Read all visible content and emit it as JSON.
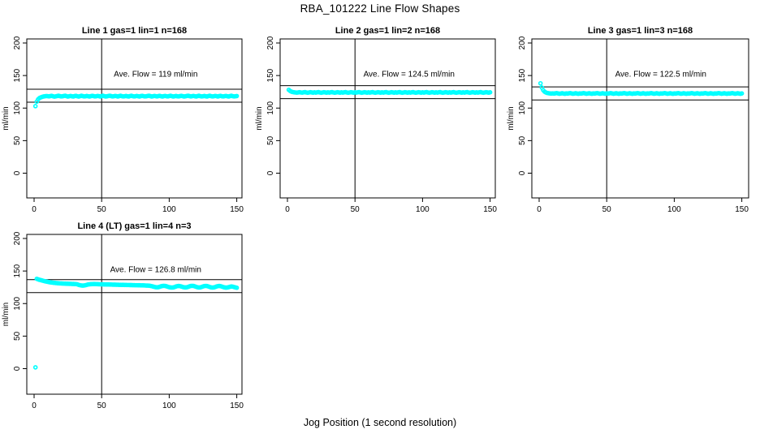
{
  "page": {
    "main_title": "RBA_101222  Line Flow Shapes",
    "x_axis_label": "Jog Position (1 second resolution)"
  },
  "colors": {
    "point": "#00FFFF",
    "axis": "#000000",
    "background": "#FFFFFF"
  },
  "chart_data": [
    {
      "type": "scatter",
      "title": "Line 1 gas=1 lin=1 n=168",
      "ylabel": "ml/min",
      "annotation": "Ave. Flow =  119  ml/min",
      "ave_flow": 119,
      "band_lines": [
        109,
        129
      ],
      "vline_x": 50,
      "xticks": [
        0,
        50,
        100,
        150
      ],
      "yticks": [
        0,
        50,
        100,
        150,
        200
      ],
      "xlim": [
        0,
        150
      ],
      "ylim": [
        0,
        200
      ],
      "x_start": 1,
      "x_step": 1,
      "values": [
        103,
        110,
        113.5,
        115.5,
        116.5,
        117.2,
        117.8,
        118.2,
        118.5,
        118.3,
        118,
        118.4,
        118.8,
        118.2,
        117.6,
        118,
        118.5,
        118.9,
        118.4,
        117.9,
        118.1,
        118.6,
        119,
        118.3,
        117.7,
        118.2,
        118.7,
        118.1,
        117.8,
        118.4,
        118.8,
        118.2,
        117.7,
        118.3,
        118.9,
        118.4,
        117.9,
        118.1,
        118.6,
        118.2,
        117.8,
        118.3,
        118.8,
        118.4,
        117.9,
        118.2,
        118.7,
        118.3,
        117.8,
        118.5,
        118.9,
        118.3,
        117.8,
        118.1,
        118.6,
        119,
        118.4,
        117.9,
        118.2,
        118.7,
        118.3,
        117.8,
        118.4,
        118.9,
        118.3,
        117.9,
        118.2,
        118.6,
        118.1,
        117.8,
        118.5,
        118.9,
        118.3,
        117.9,
        118.2,
        118.7,
        118.2,
        117.8,
        118.4,
        118.8,
        118.3,
        117.9,
        118.1,
        118.6,
        119,
        118.4,
        117.8,
        118.2,
        118.7,
        118.3,
        117.9,
        118.4,
        118.8,
        118.2,
        117.8,
        118.3,
        118.7,
        118.2,
        117.9,
        118.5,
        118.9,
        118.3,
        117.8,
        118.2,
        118.6,
        118.1,
        117.9,
        118.4,
        118.8,
        118.3,
        117.8,
        118.1,
        118.6,
        119,
        118.4,
        117.9,
        118.3,
        118.7,
        118.2,
        117.8,
        118.4,
        118.9,
        118.3,
        117.9,
        118.2,
        118.6,
        118.1,
        117.8,
        118.5,
        118.9,
        118.3,
        117.9,
        118.2,
        118.7,
        118.3,
        117.8,
        118.4,
        118.8,
        118.2,
        117.9,
        118.3,
        118.7,
        118.2,
        117.8,
        118.4,
        118.9,
        118.3,
        117.9,
        118.2,
        118.5
      ]
    },
    {
      "type": "scatter",
      "title": "Line 2 gas=1 lin=2 n=168",
      "ylabel": "ml/min",
      "annotation": "Ave. Flow =  124.5  ml/min",
      "ave_flow": 124.5,
      "band_lines": [
        114.5,
        134.5
      ],
      "vline_x": 50,
      "xticks": [
        0,
        50,
        100,
        150
      ],
      "yticks": [
        0,
        50,
        100,
        150,
        200
      ],
      "xlim": [
        0,
        150
      ],
      "ylim": [
        0,
        200
      ],
      "x_start": 1,
      "x_step": 1,
      "values": [
        128,
        126.3,
        125.2,
        124.6,
        124.2,
        124,
        123.8,
        124.1,
        124.4,
        124,
        123.8,
        124.2,
        124.5,
        124,
        123.6,
        124,
        124.4,
        124.1,
        123.7,
        124.2,
        123.8,
        124.2,
        124.5,
        124,
        123.6,
        124,
        124.4,
        124.1,
        123.7,
        124.2,
        123.8,
        124.2,
        124.5,
        124,
        123.6,
        124,
        124.4,
        124.1,
        123.7,
        124.2,
        123.8,
        124.2,
        124.5,
        124,
        123.6,
        124,
        124.4,
        124.1,
        123.7,
        124.2,
        123.8,
        124.2,
        124.5,
        124,
        123.6,
        124,
        124.4,
        124.1,
        123.7,
        124.2,
        123.8,
        124.2,
        124.5,
        124,
        123.6,
        124,
        124.4,
        124.1,
        123.7,
        124.2,
        123.8,
        124.2,
        124.5,
        124,
        123.6,
        124,
        124.4,
        124.1,
        123.7,
        124.2,
        123.8,
        124.2,
        124.5,
        124,
        123.6,
        124,
        124.4,
        124.1,
        123.7,
        124.2,
        123.8,
        124.2,
        124.5,
        124,
        123.6,
        124,
        124.4,
        124.1,
        123.7,
        124.2,
        123.8,
        124.2,
        124.5,
        124,
        123.6,
        124,
        124.4,
        124.1,
        123.7,
        124.2,
        123.8,
        124.2,
        124.5,
        124,
        123.6,
        124,
        124.4,
        124.1,
        123.7,
        124.2,
        123.8,
        124.2,
        124.5,
        124,
        123.6,
        124,
        124.4,
        124.1,
        123.7,
        124.2,
        123.8,
        124.2,
        124.5,
        124,
        123.6,
        124,
        124.4,
        124.1,
        123.7,
        124.2,
        123.8,
        124.2,
        124.5,
        124,
        123.6,
        124,
        124.4,
        124.1,
        123.7,
        124.2
      ]
    },
    {
      "type": "scatter",
      "title": "Line 3 gas=1 lin=3 n=168",
      "ylabel": "ml/min",
      "annotation": "Ave. Flow =  122.5  ml/min",
      "ave_flow": 122.5,
      "band_lines": [
        112.5,
        132.5
      ],
      "vline_x": 50,
      "xticks": [
        0,
        50,
        100,
        150
      ],
      "yticks": [
        0,
        50,
        100,
        150,
        200
      ],
      "xlim": [
        0,
        150
      ],
      "ylim": [
        0,
        200
      ],
      "x_start": 1,
      "x_step": 1,
      "values": [
        138,
        131.5,
        127.5,
        125.2,
        124,
        123.2,
        122.8,
        122.5,
        122.3,
        122.6,
        122.3,
        122.7,
        123,
        122.5,
        122.1,
        122.4,
        122.8,
        122.4,
        122,
        122.5,
        122.3,
        122.7,
        123,
        122.5,
        122.1,
        122.4,
        122.8,
        122.4,
        122,
        122.5,
        122.3,
        122.7,
        123,
        122.5,
        122.1,
        122.4,
        122.8,
        122.4,
        122,
        122.5,
        122.3,
        122.7,
        123,
        122.5,
        122.1,
        122.4,
        122.8,
        122.4,
        122,
        122.5,
        122.3,
        122.7,
        123,
        122.5,
        122.1,
        122.4,
        122.8,
        122.4,
        122,
        122.5,
        122.3,
        122.7,
        123,
        122.5,
        122.1,
        122.4,
        122.8,
        122.4,
        122,
        122.5,
        122.3,
        122.7,
        123,
        122.5,
        122.1,
        122.4,
        122.8,
        122.4,
        122,
        122.5,
        122.3,
        122.7,
        123,
        122.5,
        122.1,
        122.4,
        122.8,
        122.4,
        122,
        122.5,
        122.3,
        122.7,
        123,
        122.5,
        122.1,
        122.4,
        122.8,
        122.4,
        122,
        122.5,
        122.3,
        122.7,
        123,
        122.5,
        122.1,
        122.4,
        122.8,
        122.4,
        122,
        122.5,
        122.3,
        122.7,
        123,
        122.5,
        122.1,
        122.4,
        122.8,
        122.4,
        122,
        122.5,
        122.3,
        122.7,
        123,
        122.5,
        122.1,
        122.4,
        122.8,
        122.4,
        122,
        122.5,
        122.3,
        122.7,
        123,
        122.5,
        122.1,
        122.4,
        122.8,
        122.4,
        122,
        122.5,
        122.3,
        122.7,
        123,
        122.5,
        122.1,
        122.4,
        122.8,
        122.4,
        122,
        122.5
      ]
    },
    {
      "type": "scatter",
      "title": "Line 4 (LT) gas=1 lin=4 n=3",
      "ylabel": "ml/min",
      "annotation": "Ave. Flow =  126.8  ml/min",
      "ave_flow": 126.8,
      "band_lines": [
        116.8,
        136.8
      ],
      "vline_x": 50,
      "xticks": [
        0,
        50,
        100,
        150
      ],
      "yticks": [
        0,
        50,
        100,
        150,
        200
      ],
      "xlim": [
        0,
        150
      ],
      "ylim": [
        0,
        200
      ],
      "x_start": 1,
      "x_step": 1,
      "values": [
        2,
        138,
        137.2,
        136.5,
        136,
        135.4,
        134.8,
        134.3,
        133.8,
        133.4,
        133,
        132.6,
        132.3,
        132,
        131.8,
        131.6,
        131.4,
        131.2,
        131,
        130.9,
        130.8,
        130.7,
        130.6,
        130.5,
        130.4,
        130.3,
        130.3,
        130.2,
        130.1,
        130,
        129.9,
        129.5,
        128.8,
        128.2,
        127.8,
        127.6,
        127.8,
        128.2,
        128.8,
        129.3,
        129.6,
        129.8,
        129.9,
        130,
        130,
        129.9,
        129.8,
        129.7,
        129.6,
        129.5,
        129.5,
        129.4,
        129.4,
        129.3,
        129.3,
        129.2,
        129.2,
        129.1,
        129,
        129,
        128.9,
        128.9,
        128.8,
        128.8,
        128.7,
        128.7,
        128.6,
        128.6,
        128.5,
        128.5,
        128.4,
        128.4,
        128.3,
        128.3,
        128.2,
        128.2,
        128.1,
        128.1,
        128,
        128,
        127.9,
        127.8,
        127.7,
        127.6,
        127.5,
        127.2,
        126.8,
        126.2,
        125.6,
        125.2,
        125,
        125.2,
        125.8,
        126.5,
        127,
        127.2,
        127,
        126.5,
        125.8,
        125.2,
        124.8,
        124.6,
        124.8,
        125.4,
        126.2,
        126.8,
        127,
        126.8,
        126.2,
        125.5,
        125,
        124.8,
        125,
        125.6,
        126.4,
        127,
        127.2,
        127,
        126.4,
        125.6,
        125,
        124.7,
        124.9,
        125.5,
        126.3,
        126.9,
        127.1,
        126.9,
        126.3,
        125.5,
        124.9,
        124.6,
        124.8,
        125.4,
        126.2,
        126.8,
        127,
        126.7,
        126.1,
        125.4,
        124.8,
        124.5,
        124.7,
        125.2,
        125.8,
        126.2,
        126,
        125.4,
        124.8,
        124.3
      ]
    }
  ]
}
